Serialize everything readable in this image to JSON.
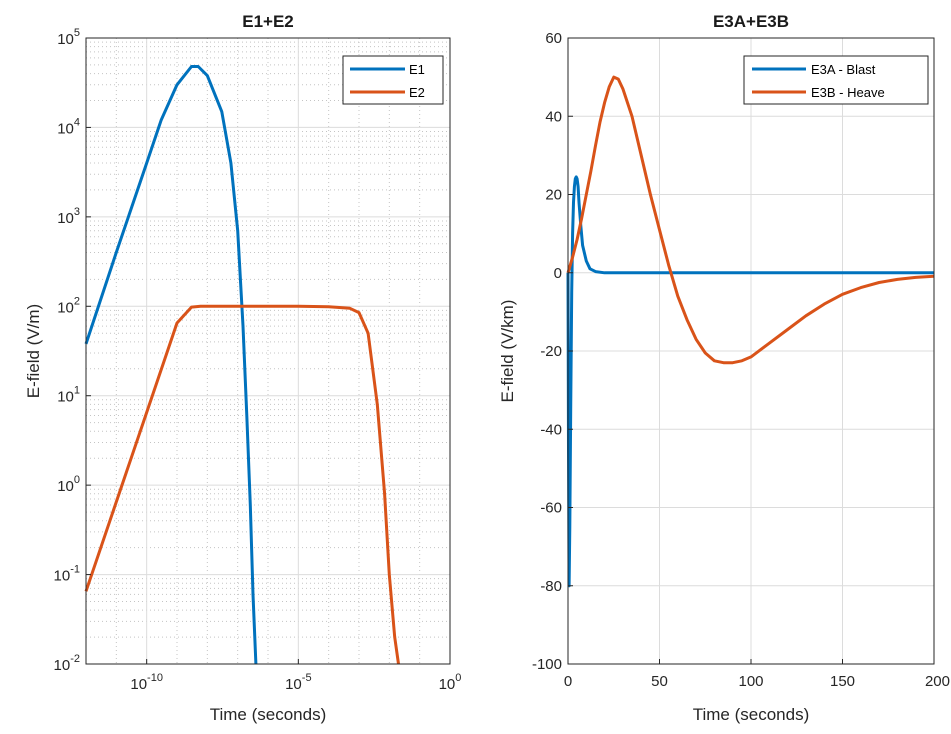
{
  "chart_data": [
    {
      "type": "line",
      "title": "E1+E2",
      "xlabel": "Time (seconds)",
      "ylabel": "E-field (V/m)",
      "xscale": "log",
      "yscale": "log",
      "xlim": [
        1e-12,
        1
      ],
      "ylim": [
        0.01,
        100000
      ],
      "grid": "major and minor",
      "legend_position": "top-right",
      "x_ticks": [
        {
          "value": 1e-10,
          "base": "10",
          "exp": "-10"
        },
        {
          "value": 1e-05,
          "base": "10",
          "exp": "-5"
        },
        {
          "value": 1,
          "base": "10",
          "exp": "0"
        }
      ],
      "y_ticks": [
        {
          "value": 0.01,
          "base": "10",
          "exp": "-2"
        },
        {
          "value": 0.1,
          "base": "10",
          "exp": "-1"
        },
        {
          "value": 1,
          "base": "10",
          "exp": "0"
        },
        {
          "value": 10,
          "base": "10",
          "exp": "1"
        },
        {
          "value": 100,
          "base": "10",
          "exp": "2"
        },
        {
          "value": 1000,
          "base": "10",
          "exp": "3"
        },
        {
          "value": 10000,
          "base": "10",
          "exp": "4"
        },
        {
          "value": 100000,
          "base": "10",
          "exp": "5"
        }
      ],
      "series": [
        {
          "name": "E1",
          "color": "#0072BD",
          "x": [
            1e-12,
            1e-11,
            1e-10,
            3e-10,
            1e-09,
            3e-09,
            5e-09,
            1e-08,
            3e-08,
            6e-08,
            1e-07,
            1.5e-07,
            2e-07,
            2.6e-07,
            3.2e-07,
            4e-07
          ],
          "y": [
            38,
            400,
            4000,
            12000,
            30000,
            48000,
            48000,
            38000,
            15000,
            4000,
            700,
            60,
            6,
            0.6,
            0.06,
            0.01
          ]
        },
        {
          "name": "E2",
          "color": "#D95319",
          "x": [
            1e-12,
            1e-11,
            1e-10,
            1e-09,
            3e-09,
            6e-09,
            1e-08,
            1e-07,
            1e-06,
            1e-05,
            0.0001,
            0.0005,
            0.001,
            0.002,
            0.004,
            0.007,
            0.01,
            0.015,
            0.02
          ],
          "y": [
            0.065,
            0.65,
            6.5,
            65,
            98,
            100,
            100,
            100,
            100,
            100,
            99,
            95,
            85,
            50,
            8,
            0.8,
            0.1,
            0.02,
            0.01
          ]
        }
      ]
    },
    {
      "type": "line",
      "title": "E3A+E3B",
      "xlabel": "Time (seconds)",
      "ylabel": "E-field (V/km)",
      "xlim": [
        0,
        200
      ],
      "ylim": [
        -100,
        60
      ],
      "grid": "major",
      "legend_position": "top-right",
      "x_ticks": [
        "0",
        "50",
        "100",
        "150",
        "200"
      ],
      "y_ticks": [
        "-100",
        "-80",
        "-60",
        "-40",
        "-20",
        "0",
        "20",
        "40",
        "60"
      ],
      "series": [
        {
          "name": "E3A - Blast",
          "color": "#0072BD",
          "x": [
            0,
            0.3,
            0.6,
            1,
            1.5,
            2,
            2.5,
            3,
            3.5,
            4,
            4.5,
            5,
            5.5,
            6,
            7,
            8,
            10,
            12,
            15,
            20,
            30,
            50,
            100,
            150,
            200
          ],
          "y": [
            0,
            -45,
            -80,
            -65,
            -35,
            -5,
            10,
            18,
            22,
            24,
            24.5,
            24,
            22,
            18,
            12,
            7,
            3,
            1,
            0.3,
            0,
            0,
            0,
            0,
            0,
            0
          ]
        },
        {
          "name": "E3B - Heave",
          "color": "#D95319",
          "x": [
            0,
            2.5,
            5,
            7.5,
            10,
            12.5,
            15,
            17.5,
            20,
            22.5,
            25,
            27.5,
            30,
            35,
            40,
            45,
            50,
            55,
            60,
            65,
            70,
            75,
            80,
            85,
            90,
            95,
            100,
            110,
            120,
            130,
            140,
            150,
            160,
            170,
            180,
            190,
            200
          ],
          "y": [
            0,
            4,
            8.5,
            14,
            20,
            26,
            32.5,
            38.5,
            43.5,
            47.5,
            50,
            49.5,
            47,
            40,
            30,
            20,
            11,
            2,
            -6,
            -12,
            -17,
            -20.5,
            -22.5,
            -23,
            -23,
            -22.5,
            -21.5,
            -18,
            -14.5,
            -11,
            -8,
            -5.5,
            -3.8,
            -2.5,
            -1.7,
            -1.2,
            -0.9
          ]
        }
      ]
    }
  ]
}
